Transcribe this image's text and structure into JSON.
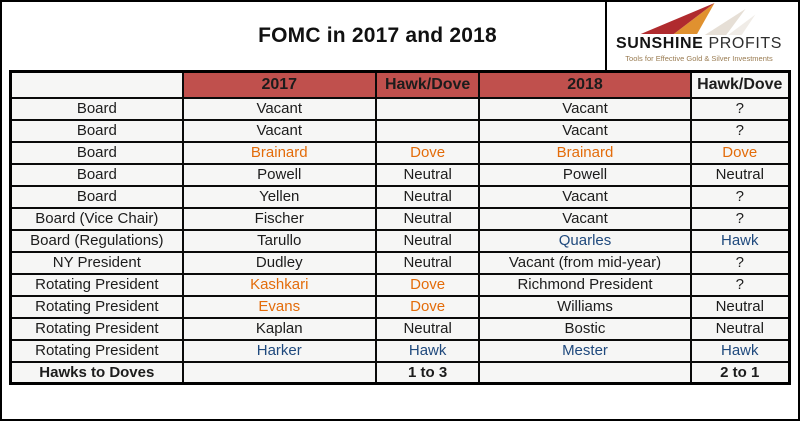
{
  "title": "FOMC in 2017 and 2018",
  "logo": {
    "brand_primary": "SUNSHINE",
    "brand_secondary": "PROFITS",
    "tagline": "Tools for Effective Gold & Silver Investments"
  },
  "colors": {
    "header_bg": "#C0504D",
    "dove_text": "#E36C0A",
    "hawk_text": "#1F497D",
    "border": "#000000",
    "logo_red": "#B02B2E",
    "logo_orange": "#E0912F",
    "logo_shadow": "#D5C9BA"
  },
  "table": {
    "headers": [
      {
        "label": "",
        "red": false
      },
      {
        "label": "2017",
        "red": true
      },
      {
        "label": "Hawk/Dove",
        "red": true
      },
      {
        "label": "2018",
        "red": true
      },
      {
        "label": "Hawk/Dove",
        "red": false
      }
    ],
    "rows": [
      {
        "cells": [
          {
            "text": "Board"
          },
          {
            "text": "Vacant"
          },
          {
            "text": ""
          },
          {
            "text": "Vacant"
          },
          {
            "text": "?"
          }
        ]
      },
      {
        "cells": [
          {
            "text": "Board"
          },
          {
            "text": "Vacant"
          },
          {
            "text": ""
          },
          {
            "text": "Vacant"
          },
          {
            "text": "?"
          }
        ]
      },
      {
        "cells": [
          {
            "text": "Board"
          },
          {
            "text": "Brainard",
            "color": "orange"
          },
          {
            "text": "Dove",
            "color": "orange"
          },
          {
            "text": "Brainard",
            "color": "orange"
          },
          {
            "text": "Dove",
            "color": "orange"
          }
        ]
      },
      {
        "cells": [
          {
            "text": "Board"
          },
          {
            "text": "Powell"
          },
          {
            "text": "Neutral"
          },
          {
            "text": "Powell"
          },
          {
            "text": "Neutral"
          }
        ]
      },
      {
        "cells": [
          {
            "text": "Board"
          },
          {
            "text": "Yellen"
          },
          {
            "text": "Neutral"
          },
          {
            "text": "Vacant"
          },
          {
            "text": "?"
          }
        ]
      },
      {
        "cells": [
          {
            "text": "Board (Vice Chair)"
          },
          {
            "text": "Fischer"
          },
          {
            "text": "Neutral"
          },
          {
            "text": "Vacant"
          },
          {
            "text": "?"
          }
        ]
      },
      {
        "cells": [
          {
            "text": "Board (Regulations)"
          },
          {
            "text": "Tarullo"
          },
          {
            "text": "Neutral"
          },
          {
            "text": "Quarles",
            "color": "blue"
          },
          {
            "text": "Hawk",
            "color": "blue"
          }
        ]
      },
      {
        "cells": [
          {
            "text": "NY President"
          },
          {
            "text": "Dudley"
          },
          {
            "text": "Neutral"
          },
          {
            "text": "Vacant (from mid-year)"
          },
          {
            "text": "?"
          }
        ]
      },
      {
        "cells": [
          {
            "text": "Rotating President"
          },
          {
            "text": "Kashkari",
            "color": "orange"
          },
          {
            "text": "Dove",
            "color": "orange"
          },
          {
            "text": "Richmond President"
          },
          {
            "text": "?"
          }
        ]
      },
      {
        "cells": [
          {
            "text": "Rotating President"
          },
          {
            "text": "Evans",
            "color": "orange"
          },
          {
            "text": "Dove",
            "color": "orange"
          },
          {
            "text": "Williams"
          },
          {
            "text": "Neutral"
          }
        ]
      },
      {
        "cells": [
          {
            "text": "Rotating President"
          },
          {
            "text": "Kaplan"
          },
          {
            "text": "Neutral"
          },
          {
            "text": "Bostic"
          },
          {
            "text": "Neutral"
          }
        ]
      },
      {
        "cells": [
          {
            "text": "Rotating President"
          },
          {
            "text": "Harker",
            "color": "blue"
          },
          {
            "text": "Hawk",
            "color": "blue"
          },
          {
            "text": "Mester",
            "color": "blue"
          },
          {
            "text": "Hawk",
            "color": "blue"
          }
        ]
      },
      {
        "bold": true,
        "cells": [
          {
            "text": "Hawks to Doves"
          },
          {
            "text": ""
          },
          {
            "text": "1 to 3"
          },
          {
            "text": ""
          },
          {
            "text": "2 to 1"
          }
        ]
      }
    ]
  },
  "chart_data": {
    "type": "table",
    "title": "FOMC in 2017 and 2018",
    "columns": [
      "",
      "2017",
      "Hawk/Dove",
      "2018",
      "Hawk/Dove"
    ],
    "rows": [
      [
        "Board",
        "Vacant",
        "",
        "Vacant",
        "?"
      ],
      [
        "Board",
        "Vacant",
        "",
        "Vacant",
        "?"
      ],
      [
        "Board",
        "Brainard",
        "Dove",
        "Brainard",
        "Dove"
      ],
      [
        "Board",
        "Powell",
        "Neutral",
        "Powell",
        "Neutral"
      ],
      [
        "Board",
        "Yellen",
        "Neutral",
        "Vacant",
        "?"
      ],
      [
        "Board (Vice Chair)",
        "Fischer",
        "Neutral",
        "Vacant",
        "?"
      ],
      [
        "Board (Regulations)",
        "Tarullo",
        "Neutral",
        "Quarles",
        "Hawk"
      ],
      [
        "NY President",
        "Dudley",
        "Neutral",
        "Vacant (from mid-year)",
        "?"
      ],
      [
        "Rotating President",
        "Kashkari",
        "Dove",
        "Richmond President",
        "?"
      ],
      [
        "Rotating President",
        "Evans",
        "Dove",
        "Williams",
        "Neutral"
      ],
      [
        "Rotating President",
        "Kaplan",
        "Neutral",
        "Bostic",
        "Neutral"
      ],
      [
        "Rotating President",
        "Harker",
        "Hawk",
        "Mester",
        "Hawk"
      ],
      [
        "Hawks to Doves",
        "",
        "1 to 3",
        "",
        "2 to 1"
      ]
    ]
  }
}
